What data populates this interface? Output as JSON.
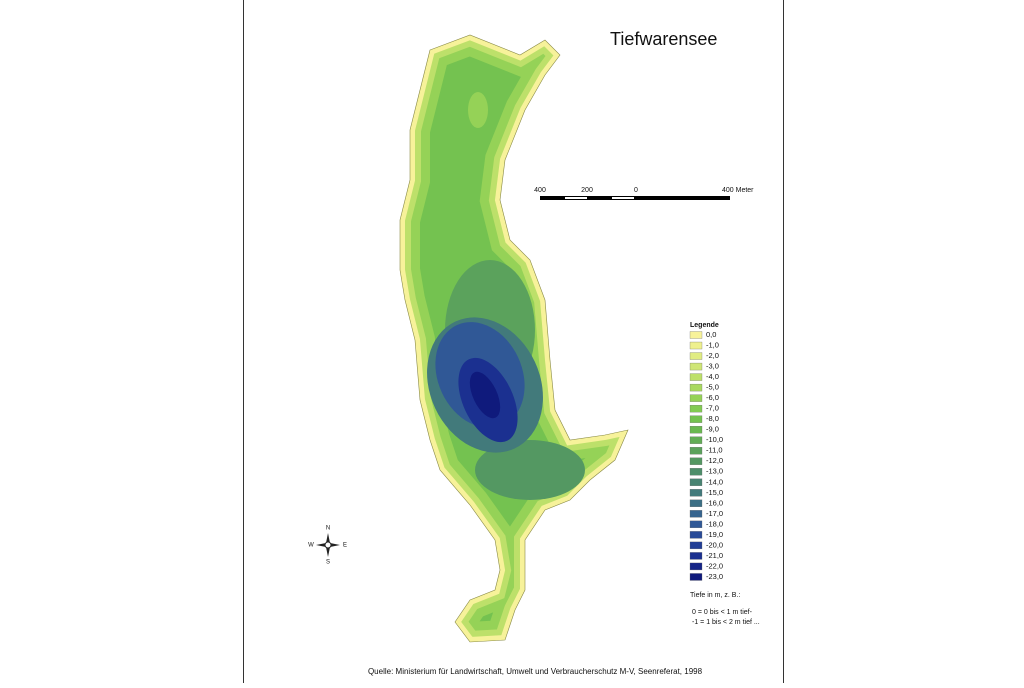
{
  "title": "Tiefwarensee",
  "scale_bar": {
    "labels": [
      "400",
      "200",
      "0",
      "400 Meter"
    ]
  },
  "compass": {
    "north": "N",
    "east": "E",
    "south": "S",
    "west": "W"
  },
  "legend": {
    "title": "Legende",
    "items": [
      {
        "label": "0,0",
        "color": "#f7f29a"
      },
      {
        "label": "-1,0",
        "color": "#eef08e"
      },
      {
        "label": "-2,0",
        "color": "#e0ec82"
      },
      {
        "label": "-3,0",
        "color": "#cfe676"
      },
      {
        "label": "-4,0",
        "color": "#bde06a"
      },
      {
        "label": "-5,0",
        "color": "#a9d95f"
      },
      {
        "label": "-6,0",
        "color": "#95d257"
      },
      {
        "label": "-7,0",
        "color": "#82cb52"
      },
      {
        "label": "-8,0",
        "color": "#74c250"
      },
      {
        "label": "-9,0",
        "color": "#6ab851"
      },
      {
        "label": "-10,0",
        "color": "#62ad56"
      },
      {
        "label": "-11,0",
        "color": "#5ba25c"
      },
      {
        "label": "-12,0",
        "color": "#549862"
      },
      {
        "label": "-13,0",
        "color": "#4e8e6a"
      },
      {
        "label": "-14,0",
        "color": "#488472"
      },
      {
        "label": "-15,0",
        "color": "#427a7b"
      },
      {
        "label": "-16,0",
        "color": "#3c6f85"
      },
      {
        "label": "-17,0",
        "color": "#36648f"
      },
      {
        "label": "-18,0",
        "color": "#305896"
      },
      {
        "label": "-19,0",
        "color": "#294b98"
      },
      {
        "label": "-20,0",
        "color": "#223e96"
      },
      {
        "label": "-21,0",
        "color": "#1b3090"
      },
      {
        "label": "-22,0",
        "color": "#152487"
      },
      {
        "label": "-23,0",
        "color": "#0f1a7c"
      }
    ],
    "notes": [
      "Tiefe in m, z. B.:",
      "0 = 0 bis < 1 m tief-",
      "-1 = 1 bis < 2 m tief ..."
    ]
  },
  "source": "Quelle: Ministerium für Landwirtschaft, Umwelt und Verbraucherschutz M-V, Seenreferat, 1998"
}
